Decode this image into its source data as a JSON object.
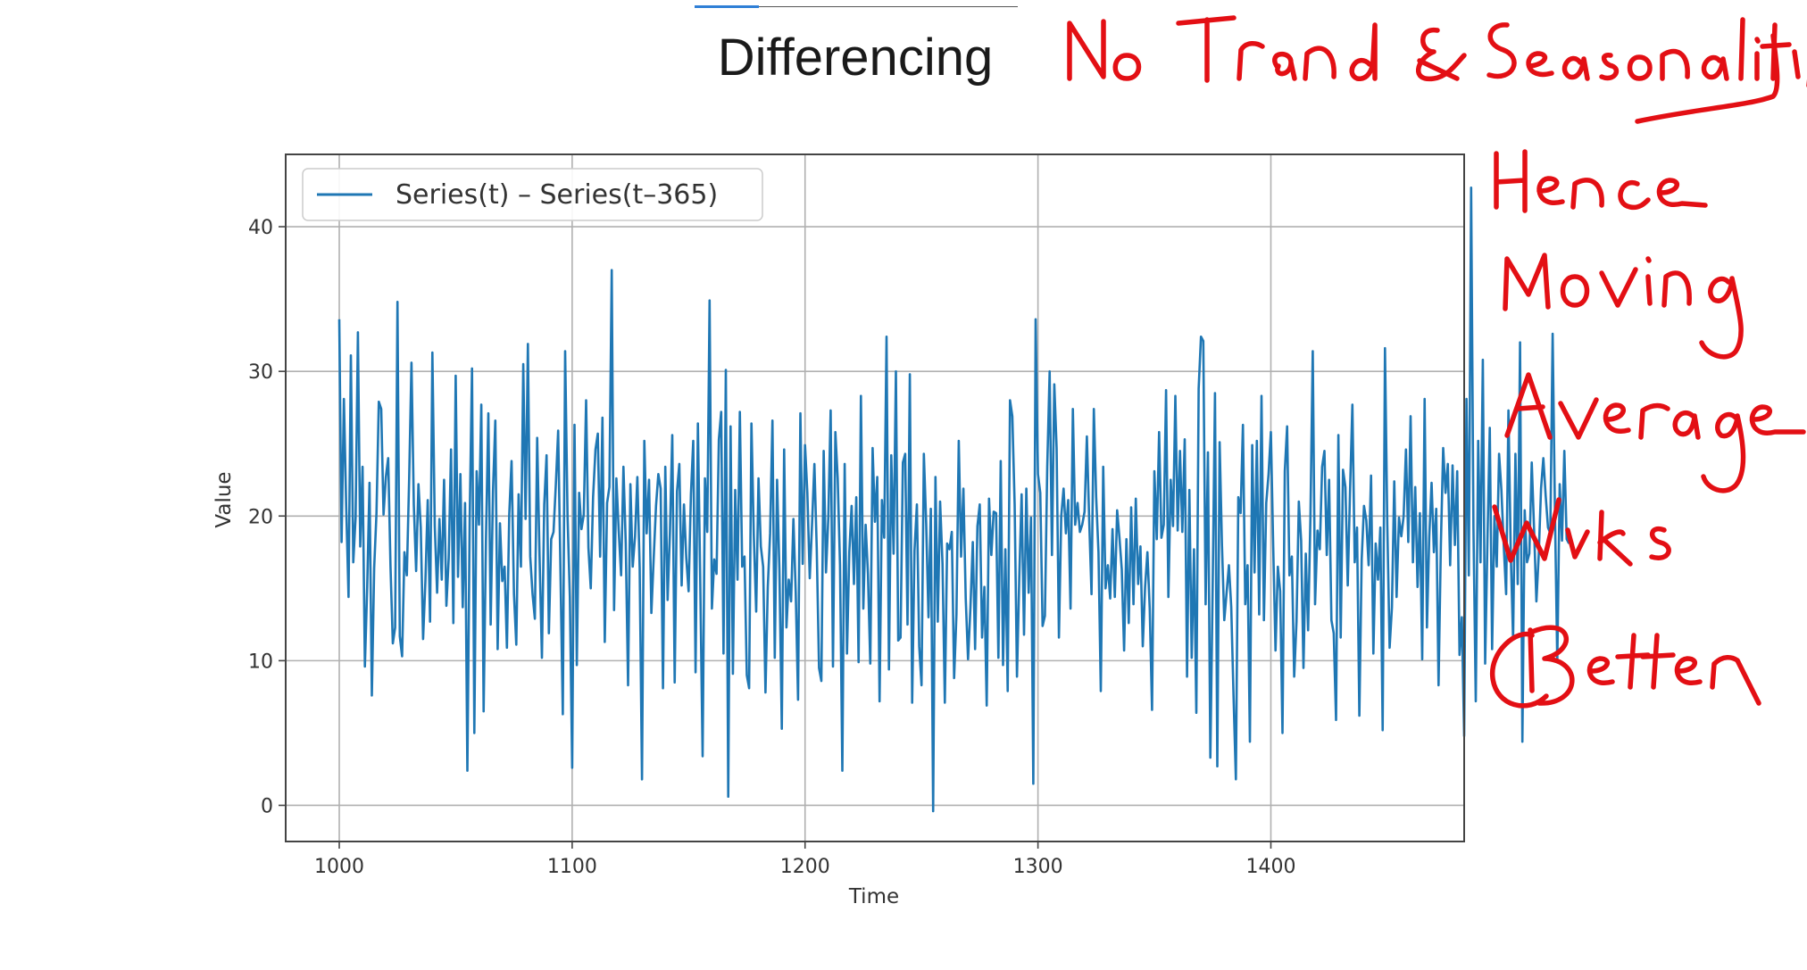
{
  "slide": {
    "title": "Differencing",
    "accent_color": "#2f7fd6"
  },
  "annotation": {
    "lines": [
      "No Trend & Seasonality",
      "Hence",
      "Moving",
      "Average",
      "Works",
      "Better"
    ],
    "color": "#e30f14"
  },
  "chart_data": {
    "type": "line",
    "xlabel": "Time",
    "ylabel": "Value",
    "xlim": [
      977,
      1483
    ],
    "ylim": [
      -2.5,
      45
    ],
    "xticks": [
      1000,
      1100,
      1200,
      1300,
      1400
    ],
    "yticks": [
      0,
      10,
      20,
      30,
      40
    ],
    "grid": true,
    "legend_position": "upper-left",
    "line_color": "#1f77b4",
    "series": [
      {
        "name": "Series(t) – Series(t–365)",
        "x_start": 1000,
        "x_step": 1,
        "values": [
          33.6,
          18.2,
          28.1,
          20.6,
          14.4,
          31.1,
          16.8,
          19.9,
          32.7,
          17.9,
          23.4,
          9.6,
          15.1,
          22.3,
          7.6,
          16.4,
          20.2,
          27.9,
          27.4,
          20.1,
          22.7,
          24,
          16.5,
          11.2,
          12.3,
          34.8,
          11.7,
          10.3,
          17.5,
          15.9,
          22.6,
          30.6,
          20.8,
          16.2,
          22.2,
          19.2,
          11.5,
          15.5,
          21.1,
          12.7,
          31.3,
          19.3,
          14.7,
          19.8,
          15.6,
          22.5,
          13.8,
          17.1,
          24.6,
          12.6,
          29.7,
          15.8,
          22.9,
          13.7,
          20.9,
          2.4,
          19.8,
          30.2,
          5,
          23.1,
          19.4,
          27.7,
          6.5,
          18.3,
          27.1,
          12.5,
          21.7,
          26.6,
          10.8,
          19.5,
          15.5,
          16.5,
          10.9,
          20.1,
          23.8,
          14.6,
          11.1,
          21.5,
          16.5,
          30.5,
          19.8,
          31.9,
          17.2,
          14.6,
          12.9,
          25.4,
          17.3,
          10.2,
          20.8,
          24.2,
          11.9,
          18.4,
          18.9,
          22.2,
          25.9,
          16.1,
          6.3,
          31.4,
          20,
          14.4,
          2.6,
          26.3,
          9.7,
          21.6,
          19.1,
          20.1,
          28,
          17.8,
          15,
          21.3,
          24.6,
          25.7,
          17.2,
          26.8,
          11.3,
          20.9,
          22,
          37,
          13.5,
          22.6,
          19,
          15.9,
          23.4,
          18.1,
          8.3,
          22.2,
          16.5,
          18.6,
          22.7,
          16.4,
          1.8,
          25.2,
          18.8,
          22.5,
          13.3,
          17.1,
          20.7,
          22.9,
          21.9,
          8.1,
          23.4,
          14.2,
          18.9,
          25.6,
          8.5,
          21.7,
          23.6,
          15.2,
          20.8,
          17.1,
          14.8,
          21.5,
          25.2,
          9.2,
          26.4,
          15.7,
          3.4,
          22.6,
          18.9,
          34.9,
          13.6,
          17,
          16,
          25.3,
          27.2,
          10.5,
          30.1,
          0.6,
          26.2,
          9.1,
          21.8,
          15.6,
          27.2,
          16.5,
          17.2,
          9,
          8.1,
          26.4,
          18.7,
          13.4,
          22.6,
          17.9,
          16.5,
          7.8,
          15.1,
          18.8,
          26.6,
          10.2,
          22.5,
          16.3,
          5.3,
          24.6,
          12.3,
          15.6,
          14.1,
          19.8,
          14.7,
          7.3,
          27.1,
          16.7,
          24.9,
          21.6,
          15.7,
          19.5,
          23.6,
          17.8,
          9.5,
          8.6,
          24.5,
          16.1,
          19.9,
          27.3,
          9.6,
          25.8,
          22.6,
          16.6,
          2.4,
          23.6,
          10.5,
          17.5,
          20.7,
          15.3,
          21.3,
          9.9,
          28.3,
          13.6,
          19.4,
          16,
          9.8,
          24.7,
          19.6,
          22.7,
          7.2,
          21.1,
          18.5,
          32.4,
          9.4,
          24.2,
          17.4,
          30,
          11.4,
          11.6,
          23.7,
          24.3,
          12.5,
          29.8,
          7.1,
          17.6,
          20.8,
          11,
          8.3,
          24.3,
          19.5,
          13,
          20.5,
          -0.4,
          22.7,
          12.7,
          21,
          16.7,
          7.1,
          18.1,
          17.7,
          18.9,
          8.8,
          13.2,
          25.2,
          17.2,
          21.9,
          14.3,
          10.1,
          13.7,
          18.2,
          10.8,
          19.3,
          20.8,
          11.6,
          15.1,
          6.9,
          21.2,
          17.3,
          20.3,
          20.2,
          10.2,
          23.8,
          9.7,
          17.7,
          7.9,
          28,
          26.9,
          20.8,
          8.9,
          15.8,
          21.5,
          11.8,
          21.9,
          14.7,
          19.9,
          1.5,
          33.6,
          22.9,
          21.6,
          12.4,
          13.1,
          23.4,
          30,
          17.3,
          29.1,
          24.7,
          11.6,
          20,
          21.9,
          18.8,
          21.1,
          13.6,
          27.4,
          19.4,
          20.9,
          18.9,
          19.4,
          20.3,
          25.5,
          19.7,
          14.6,
          27.4,
          21.3,
          17.5,
          7.9,
          23.4,
          15,
          16.6,
          14.3,
          19.1,
          14.4,
          20.4,
          18.5,
          16.3,
          10.7,
          18.4,
          12.6,
          20.6,
          13.9,
          21.2,
          15.3,
          17.9,
          11,
          15.1,
          17.5,
          13.6,
          6.6,
          23.1,
          18.4,
          25.8,
          18.5,
          19.4,
          28.7,
          14.4,
          22.5,
          19.3,
          28.3,
          19,
          24.5,
          18.9,
          25.3,
          8.9,
          21.8,
          10.2,
          17.7,
          6.4,
          28.8,
          32.4,
          32.1,
          13.9,
          24.4,
          3.3,
          15.1,
          28.5,
          2.7,
          25.1,
          18,
          12.8,
          14.7,
          16.6,
          13.7,
          7.5,
          1.8,
          21.3,
          20.2,
          26.3,
          13.9,
          16.6,
          4.4,
          24.9,
          16.1,
          25.2,
          13.2,
          28.3,
          12.8,
          20.9,
          22.9,
          25.8,
          17.9,
          10.7,
          16.5,
          14.8,
          5,
          23.1,
          26.2,
          15.9,
          17.2,
          8.9,
          12.7,
          21,
          18.3,
          9.5,
          17.4,
          12.1,
          19.9,
          31.4,
          13.9,
          19,
          17.7,
          23.4,
          24.5,
          17.3,
          22.5,
          12.8,
          11.9,
          5.9,
          25.6,
          11.6,
          23.2,
          22,
          15.2,
          21.8,
          27.7,
          16.8,
          19.2,
          6.2,
          17,
          20.7,
          19.7,
          16.6,
          22.8,
          10.5,
          18.1,
          15.6,
          19.2,
          5.2,
          31.6,
          19.4,
          10.9,
          13.7,
          22.4,
          14.4,
          19.9,
          18.6,
          20,
          24.6,
          18.2,
          26.9,
          16.8,
          22,
          15.1,
          20.2,
          10.1,
          28.1,
          12.3,
          18.6,
          22.3,
          17.5,
          20.5,
          8.3,
          18,
          24.7,
          21.6,
          23.6,
          16.6,
          23.5,
          18,
          23.1,
          10.4,
          13,
          4.8,
          28.1,
          15.9,
          42.7,
          19.2,
          7.2,
          25.2,
          16.8,
          30.8,
          9.8,
          18.4,
          26.1,
          10.8,
          20,
          16.5,
          24.3,
          21.8,
          18,
          14.6,
          27.3,
          17.4,
          11.5,
          24.3,
          15.3,
          32,
          4.4,
          20.4,
          16.8,
          17.4,
          23.7,
          19.1,
          14.1,
          17.3,
          21.9,
          24,
          21.4,
          19.2,
          18.8,
          32.6,
          20.2,
          9.9,
          22.2,
          18.3,
          24.5,
          18.4,
          18.1
        ]
      }
    ]
  }
}
